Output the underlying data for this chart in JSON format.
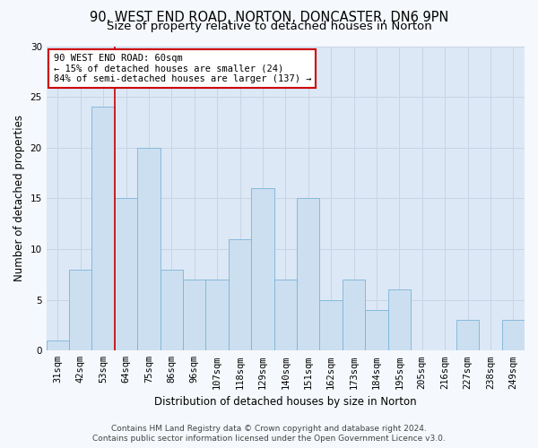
{
  "title_line1": "90, WEST END ROAD, NORTON, DONCASTER, DN6 9PN",
  "title_line2": "Size of property relative to detached houses in Norton",
  "xlabel": "Distribution of detached houses by size in Norton",
  "ylabel": "Number of detached properties",
  "categories": [
    "31sqm",
    "42sqm",
    "53sqm",
    "64sqm",
    "75sqm",
    "86sqm",
    "96sqm",
    "107sqm",
    "118sqm",
    "129sqm",
    "140sqm",
    "151sqm",
    "162sqm",
    "173sqm",
    "184sqm",
    "195sqm",
    "205sqm",
    "216sqm",
    "227sqm",
    "238sqm",
    "249sqm"
  ],
  "values": [
    1,
    8,
    24,
    15,
    20,
    8,
    7,
    7,
    11,
    16,
    7,
    15,
    5,
    7,
    4,
    6,
    0,
    0,
    3,
    0,
    3
  ],
  "bar_color": "#ccdff0",
  "bar_edge_color": "#7ab4d8",
  "red_line_x": 2.5,
  "annotation_text": "90 WEST END ROAD: 60sqm\n← 15% of detached houses are smaller (24)\n84% of semi-detached houses are larger (137) →",
  "annotation_box_color": "#ffffff",
  "annotation_box_edge_color": "#cc0000",
  "red_line_color": "#cc0000",
  "ylim": [
    0,
    30
  ],
  "yticks": [
    0,
    5,
    10,
    15,
    20,
    25,
    30
  ],
  "grid_color": "#c8d4e4",
  "plot_bg_color": "#dce8f5",
  "fig_bg_color": "#f5f8fc",
  "footer_line1": "Contains HM Land Registry data © Crown copyright and database right 2024.",
  "footer_line2": "Contains public sector information licensed under the Open Government Licence v3.0.",
  "title_fontsize": 10.5,
  "subtitle_fontsize": 9.5,
  "axis_label_fontsize": 8.5,
  "tick_fontsize": 7.5,
  "annotation_fontsize": 7.5,
  "footer_fontsize": 6.5
}
